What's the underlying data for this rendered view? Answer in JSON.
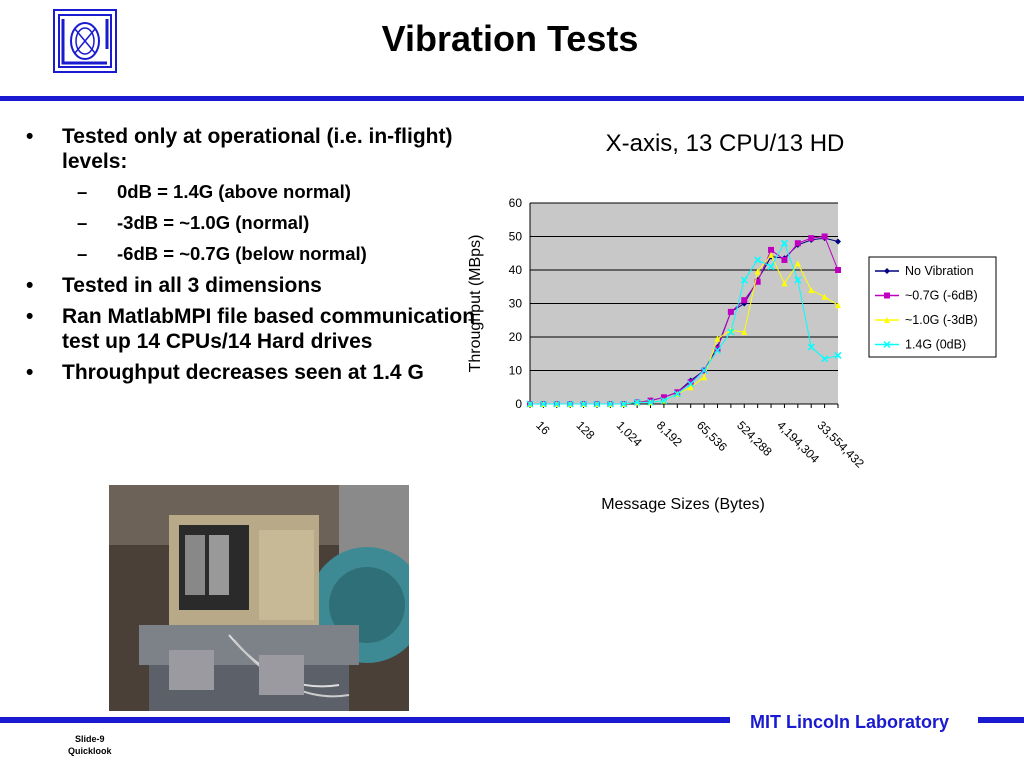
{
  "slide": {
    "title": "Vibration Tests",
    "footer_lab": "MIT Lincoln Laboratory",
    "slide_number": "Slide-9",
    "slide_sub": "Quicklook",
    "accent_color": "#1a1ad0"
  },
  "bullets": [
    {
      "text": "Tested only at operational (i.e. in-flight) levels:",
      "subs": [
        "0dB = 1.4G (above normal)",
        "-3dB = ~1.0G (normal)",
        "-6dB = ~0.7G (below normal)"
      ]
    },
    {
      "text": "Tested in all 3 dimensions",
      "subs": []
    },
    {
      "text": "Ran MatlabMPI file based communication test up 14 CPUs/14 Hard drives",
      "subs": []
    },
    {
      "text": "Throughput decreases seen at 1.4 G",
      "subs": []
    }
  ],
  "chart_data": {
    "type": "line",
    "title": "X-axis, 13 CPU/13 HD",
    "xlabel": "Message Sizes (Bytes)",
    "ylabel": "Throughput (MBps)",
    "ylim": [
      0,
      60
    ],
    "yticks": [
      0,
      10,
      20,
      30,
      40,
      50,
      60
    ],
    "x_tick_labels": [
      "16",
      "128",
      "1,024",
      "8,192",
      "65,536",
      "524,288",
      "4,194,304",
      "33,554,432"
    ],
    "x_tick_index": [
      1,
      4,
      7,
      10,
      13,
      16,
      19,
      22
    ],
    "legend_position": "right",
    "grid": true,
    "series": [
      {
        "name": "No Vibration",
        "color": "#000080",
        "marker": "diamond",
        "values": [
          0,
          0,
          0,
          0,
          0,
          0,
          0,
          0,
          0.5,
          1,
          2,
          3.5,
          7,
          10,
          17,
          27.5,
          30,
          37,
          44,
          43.5,
          47.5,
          49,
          49.5,
          48.5
        ]
      },
      {
        "name": "~0.7G (-6dB)",
        "color": "#c000c0",
        "marker": "square",
        "values": [
          0,
          0,
          0,
          0,
          0,
          0,
          0,
          0,
          0.5,
          1,
          2,
          3.5,
          6.5,
          10,
          16.5,
          27.5,
          31,
          36.5,
          46,
          43,
          48,
          49.5,
          50,
          40
        ]
      },
      {
        "name": "~1.0G (-3dB)",
        "color": "#ffff00",
        "marker": "triangle",
        "values": [
          0,
          0,
          0,
          0,
          0,
          0,
          0,
          0,
          0.5,
          0.5,
          1,
          3,
          5,
          8,
          19.5,
          22,
          21.5,
          39.5,
          44.5,
          36,
          42,
          34,
          32,
          29.5
        ]
      },
      {
        "name": "1.4G (0dB)",
        "color": "#00ffff",
        "marker": "x",
        "values": [
          0,
          0,
          0,
          0,
          0,
          0,
          0,
          0,
          0.5,
          0.5,
          1,
          3,
          6,
          10,
          16,
          21.5,
          37,
          43,
          41,
          48,
          37,
          17,
          13.5,
          14.5
        ]
      }
    ]
  }
}
